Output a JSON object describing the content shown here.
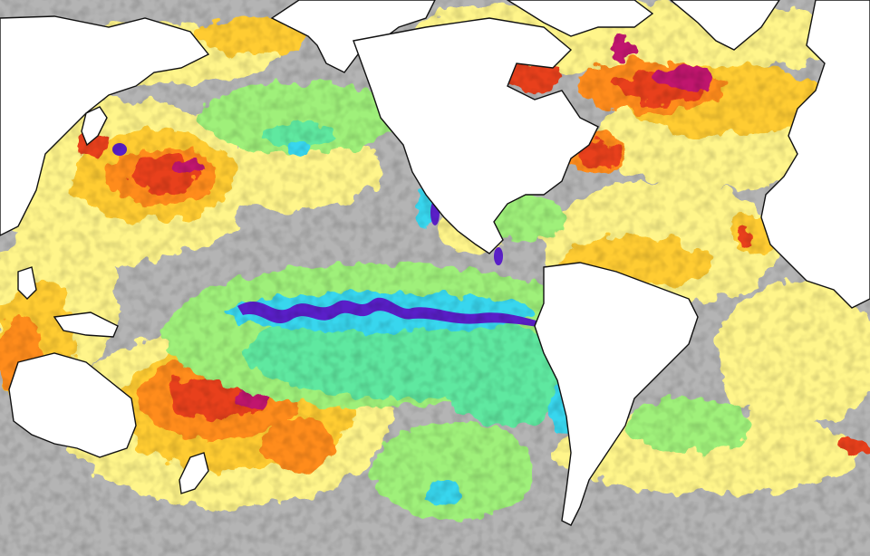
{
  "map": {
    "type": "sea-surface-temperature-anomaly",
    "projection": "equirectangular",
    "center": "pacific",
    "colors": {
      "ocean_neutral": "#b4b4b4",
      "land": "#ffffff",
      "coast": "#111111",
      "warm_light": "#fff58a",
      "warm": "#ffcc33",
      "warm_strong": "#ff8c1a",
      "hot": "#e8401c",
      "hottest": "#c0136e",
      "cool_light": "#9ff07a",
      "cool": "#5fe8a0",
      "cold": "#38d6ee",
      "coldest": "#5a1fc8"
    },
    "features": [
      "equatorial-pacific-cold-tongue",
      "warm-north-pacific",
      "warm-southwest-pacific",
      "warm-north-atlantic",
      "warm-labrador-sea",
      "cool-eastern-tropical-pacific"
    ]
  }
}
